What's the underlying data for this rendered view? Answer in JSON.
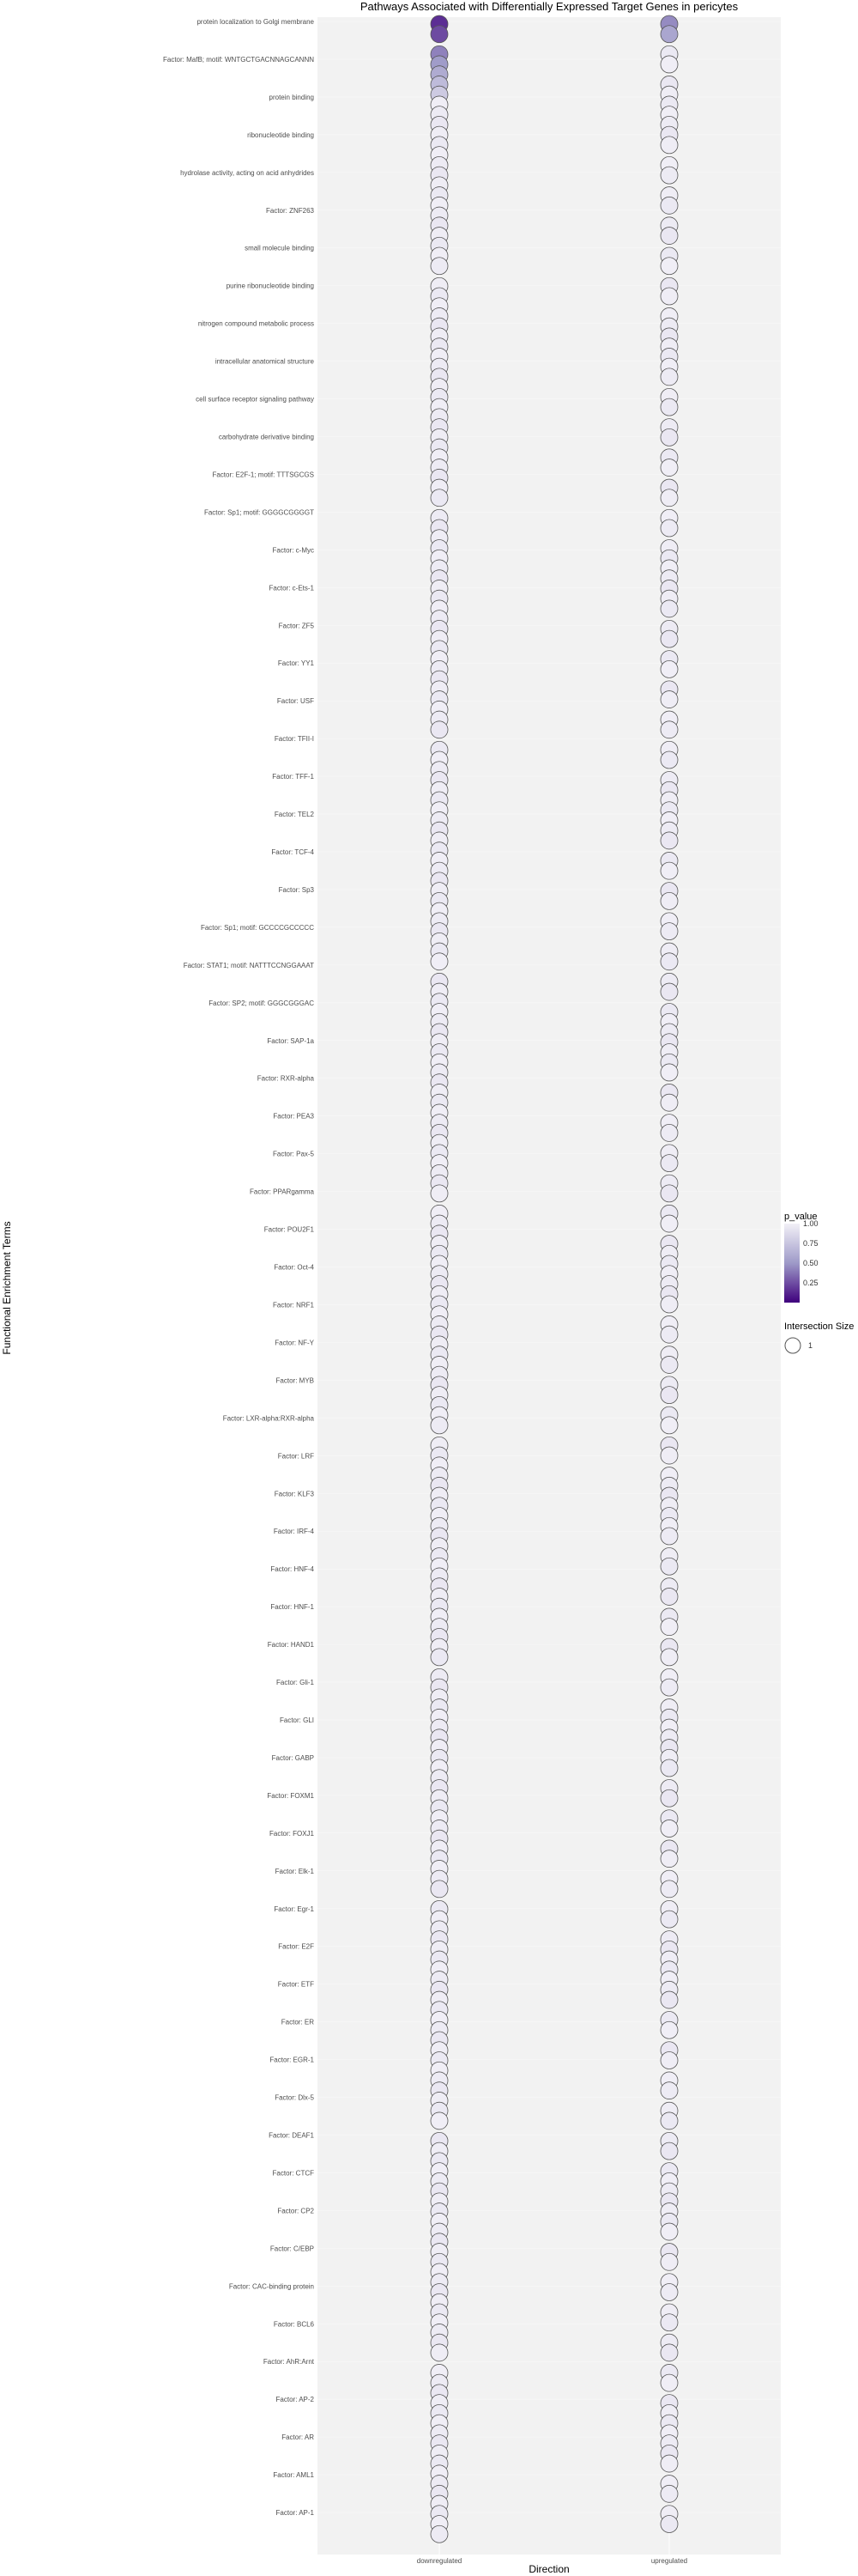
{
  "chart_data": {
    "type": "scatter",
    "title": "Pathways Associated with Differentially Expressed Target Genes in pericytes",
    "xlabel": "Direction",
    "ylabel": "Functional Enrichment Terms",
    "categories": [
      "downregulated",
      "upregulated"
    ],
    "y_tick_labels": [
      "protein localization to Golgi membrane",
      "Factor: MafB; motif: WNTGCTGACNNAGCANNN",
      "protein binding",
      "ribonucleotide binding",
      "hydrolase activity, acting on acid anhydrides",
      "Factor: ZNF263",
      "small molecule binding",
      "purine ribonucleotide binding",
      "nitrogen compound metabolic process",
      "intracellular anatomical structure",
      "cell surface receptor signaling pathway",
      "carbohydrate derivative binding",
      "Factor: E2F-1; motif: TTTSGCGS",
      "Factor: Sp1; motif: GGGGCGGGGT",
      "Factor: c-Myc",
      "Factor: c-Ets-1",
      "Factor: ZF5",
      "Factor: YY1",
      "Factor: USF",
      "Factor: TFII-I",
      "Factor: TFF-1",
      "Factor: TEL2",
      "Factor: TCF-4",
      "Factor: Sp3",
      "Factor: Sp1; motif: GCCCCGCCCCC",
      "Factor: STAT1; motif: NATTTCCNGGAAAT",
      "Factor: SP2; motif: GGGCGGGAC",
      "Factor: SAP-1a",
      "Factor: RXR-alpha",
      "Factor: PEA3",
      "Factor: Pax-5",
      "Factor: PPARgamma",
      "Factor: POU2F1",
      "Factor: Oct-4",
      "Factor: NRF1",
      "Factor: NF-Y",
      "Factor: MYB",
      "Factor: LXR-alpha:RXR-alpha",
      "Factor: LRF",
      "Factor: KLF3",
      "Factor: IRF-4",
      "Factor: HNF-4",
      "Factor: HNF-1",
      "Factor: HAND1",
      "Factor: Gli-1",
      "Factor: GLI",
      "Factor: GABP",
      "Factor: FOXM1",
      "Factor: FOXJ1",
      "Factor: Elk-1",
      "Factor: Egr-1",
      "Factor: E2F",
      "Factor: ETF",
      "Factor: ER",
      "Factor: EGR-1",
      "Factor: Dlx-5",
      "Factor: DEAF1",
      "Factor: CTCF",
      "Factor: CP2",
      "Factor: C/EBP",
      "Factor: CAC-binding protein",
      "Factor: BCL6",
      "Factor: AhR:Arnt",
      "Factor: AP-2",
      "Factor: AR",
      "Factor: AML1",
      "Factor: AP-1"
    ],
    "points_per_column": 250,
    "legend": {
      "color_title": "p_value",
      "color_ticks": [
        1.0,
        0.75,
        0.5,
        0.25
      ],
      "size_title": "Intersection Size",
      "size_ticks": [
        1
      ]
    },
    "colors": {
      "low": "#3f007d",
      "high": "#f2f0f7",
      "panel_bg": "#f2f2f2",
      "grid": "#ffffff",
      "point_outline": "#555555"
    },
    "placement": {
      "legend": "right",
      "grid": true
    }
  }
}
